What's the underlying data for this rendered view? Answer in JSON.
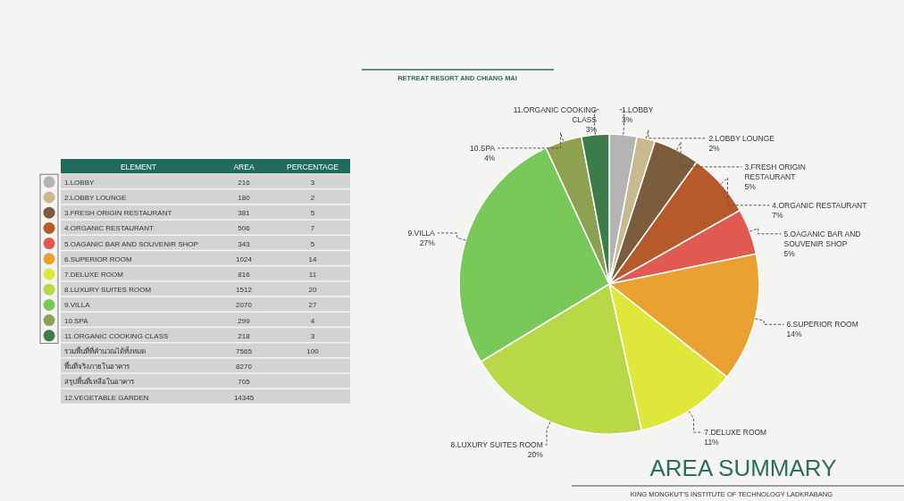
{
  "chart_data": [
    {
      "type": "other",
      "xlabel": "ELEMENT",
      "data_labels": true,
      "categories": [
        "1.LOBBY",
        "2.LOBBY LOUNGE",
        "3.FRESH ORIGIN RESTAURANT",
        "4.ORGANIC RESTAURANT",
        "5.OAGANIC BAR AND SOUVENIR SHOP",
        "6.SUPERIOR ROOM",
        "7.DELUXE ROOM",
        "8.LUXURY SUITES ROOM",
        "9.VILLA",
        "10.SPA",
        "11.ORGANIC COOKING CLASS",
        "รวมพื้นที่ที่คำนวณได้ทั้งหมด",
        "พื้นที่จริงภายในอาคาร",
        "สรุปพื้นที่เหลือในอาคาร",
        "12.VEGETABLE GARDEN"
      ],
      "colors": [
        "#b4b4b2",
        "#c9b98e",
        "#7b5c3c",
        "#b65a2c",
        "#e05a52",
        "#e9a232",
        "#dfe83a",
        "#b9d847",
        "#78c85a",
        "#8da150",
        "#3c7b4a",
        null,
        null,
        null,
        null
      ],
      "series": [
        {
          "name": "AREA",
          "values": [
            216,
            180,
            381,
            506,
            343,
            1024,
            816,
            1512,
            2070,
            299,
            218,
            7565,
            8270,
            705,
            14345
          ]
        },
        {
          "name": "PERCENTAGE",
          "values": [
            3,
            2,
            5,
            7,
            5,
            14,
            11,
            20,
            27,
            4,
            3,
            100,
            null,
            null,
            null
          ]
        }
      ]
    },
    {
      "type": "pie",
      "title": "AREA SUMMARY",
      "subtitle": "RETREAT RESORT AND CHIANG MAI",
      "annotations": [
        "KING MONGKUT'S INSTITUTE OF TECHNOLOGY LADKRABANG"
      ],
      "categories": [
        "1.LOBBY",
        "2.LOBBY LOUNGE",
        "3.FRESH ORIGIN RESTAURANT",
        "4.ORGANIC RESTAURANT",
        "5.OAGANIC BAR AND SOUVENIR SHOP",
        "6.SUPERIOR ROOM",
        "7.DELUXE ROOM",
        "8.LUXURY SUITES ROOM",
        "9.VILLA",
        "10.SPA",
        "11.ORGANIC COOKING CLASS"
      ],
      "values": [
        3,
        2,
        5,
        7,
        5,
        14,
        11,
        20,
        27,
        4,
        3
      ],
      "value_labels": [
        "3%",
        "2%",
        "5%",
        "7%",
        "5%",
        "14%",
        "11%",
        "20%",
        "27%",
        "4%",
        "3%"
      ],
      "colors": [
        "#b4b4b2",
        "#c9b98e",
        "#7b5c3c",
        "#b65a2c",
        "#e05a52",
        "#e9a232",
        "#dfe83a",
        "#b9d847",
        "#78c85a",
        "#8da150",
        "#3c7b4a"
      ]
    }
  ]
}
